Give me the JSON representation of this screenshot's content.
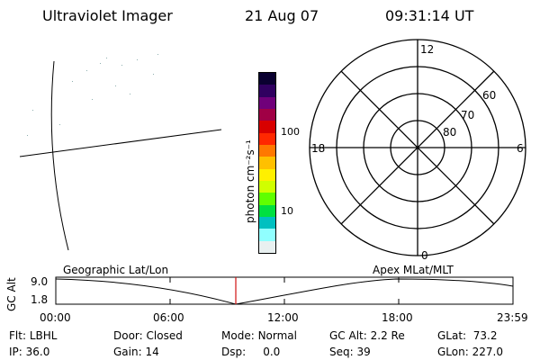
{
  "header": {
    "instrument": "Ultraviolet Imager",
    "date": "21 Aug 07",
    "time": "09:31:14 UT"
  },
  "colorbar": {
    "label": "photon cm⁻²s⁻¹",
    "ticks": [
      {
        "label": "100",
        "value": 100
      },
      {
        "label": "10",
        "value": 10
      }
    ],
    "colors": [
      "#0a0030",
      "#300060",
      "#70007a",
      "#a00045",
      "#d80000",
      "#ff2800",
      "#ff7800",
      "#ffc000",
      "#fff000",
      "#d0ff00",
      "#60ff00",
      "#00e040",
      "#00c0c0",
      "#90ffff",
      "#e8f0f0"
    ]
  },
  "polar_plot": {
    "clock_labels": [
      "12",
      "18",
      "6",
      "0"
    ],
    "lat_labels": [
      "60",
      "70",
      "80"
    ]
  },
  "timeline": {
    "left_label": "Geographic Lat/Lon",
    "right_label": "Apex MLat/MLT",
    "y_axis_label": "GC Alt",
    "y_ticks": [
      "9.0",
      "1.8"
    ],
    "time_ticks": [
      "00:00",
      "06:00",
      "12:00",
      "18:00",
      "23:59"
    ],
    "marker_color": "#d01010"
  },
  "info": {
    "row1": [
      {
        "key": "Flt:",
        "val": "LBHL"
      },
      {
        "key": "Door:",
        "val": "Closed"
      },
      {
        "key": "Mode:",
        "val": "Normal"
      },
      {
        "key": "GC Alt:",
        "val": "2.2 Re"
      },
      {
        "key": "GLat:",
        "val": "73.2"
      }
    ],
    "row2": [
      {
        "key": "IP:",
        "val": "36.0"
      },
      {
        "key": "Gain:",
        "val": "14"
      },
      {
        "key": "Dsp:",
        "val": "0.0"
      },
      {
        "key": "Seq:",
        "val": "39"
      },
      {
        "key": "GLon:",
        "val": "227.0"
      }
    ]
  }
}
